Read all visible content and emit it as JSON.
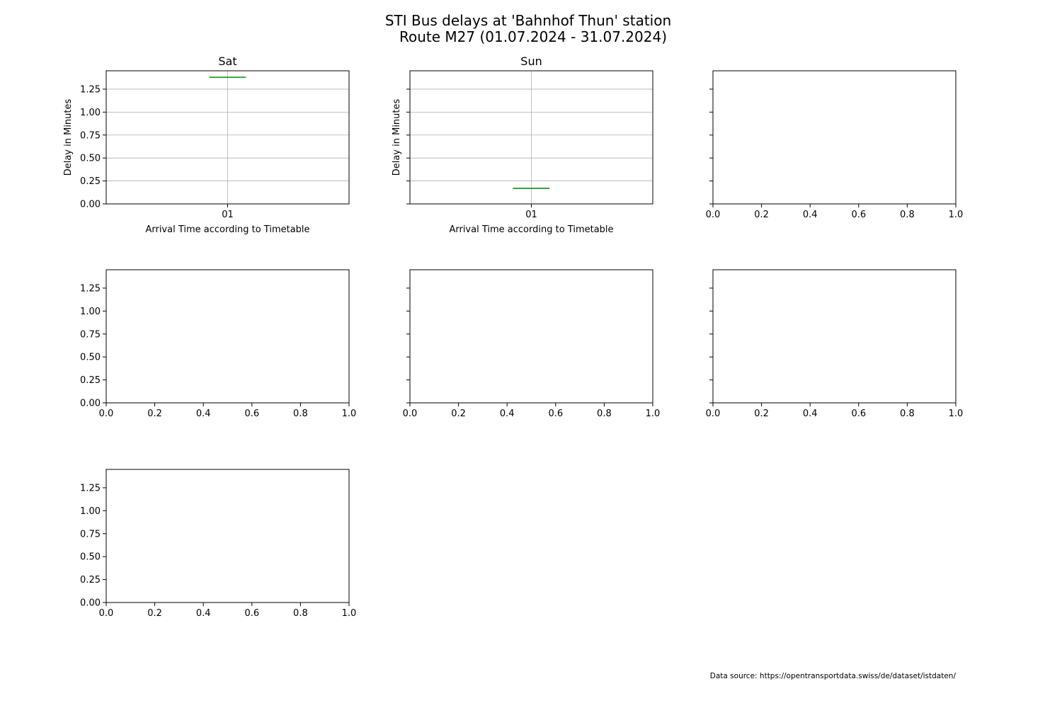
{
  "figure": {
    "title_lines": [
      "STI Bus delays at 'Bahnhof Thun' station",
      "Route M27 (01.07.2024 - 31.07.2024)"
    ],
    "footnote": "Data source: https://opentransportdata.swiss/de/dataset/istdaten/"
  },
  "chart_data": [
    {
      "type": "box",
      "title": "Sat",
      "xlabel": "Arrival Time according to Timetable",
      "ylabel": "Delay in Minutes",
      "grid": true,
      "categories": [
        "01"
      ],
      "series": [
        {
          "values": [
            [
              1.38,
              1.38,
              1.38,
              1.38,
              1.38
            ]
          ]
        }
      ],
      "ylim": [
        0,
        1.45
      ],
      "yticks": [
        "0.00",
        "0.25",
        "0.50",
        "0.75",
        "1.00",
        "1.25"
      ],
      "show_ytick_labels": true
    },
    {
      "type": "box",
      "title": "Sun",
      "xlabel": "Arrival Time according to Timetable",
      "ylabel": "Delay in Minutes",
      "grid": true,
      "categories": [
        "01"
      ],
      "series": [
        {
          "values": [
            [
              0.17,
              0.17,
              0.17,
              0.17,
              0.17
            ]
          ]
        }
      ],
      "ylim": [
        0,
        1.45
      ],
      "yticks": [
        "0.00",
        "0.25",
        "0.50",
        "0.75",
        "1.00",
        "1.25"
      ],
      "show_ytick_labels": false
    },
    {
      "type": "empty",
      "title": "",
      "xlim": [
        0,
        1
      ],
      "ylim": [
        0,
        1.45
      ],
      "xticks": [
        "0.0",
        "0.2",
        "0.4",
        "0.6",
        "0.8",
        "1.0"
      ],
      "yticks": [
        "0.00",
        "0.25",
        "0.50",
        "0.75",
        "1.00",
        "1.25"
      ],
      "show_ytick_labels": false
    },
    {
      "type": "empty",
      "title": "",
      "xlim": [
        0,
        1
      ],
      "ylim": [
        0,
        1.45
      ],
      "xticks": [
        "0.0",
        "0.2",
        "0.4",
        "0.6",
        "0.8",
        "1.0"
      ],
      "yticks": [
        "0.00",
        "0.25",
        "0.50",
        "0.75",
        "1.00",
        "1.25"
      ],
      "show_ytick_labels": true
    },
    {
      "type": "empty",
      "title": "",
      "xlim": [
        0,
        1
      ],
      "ylim": [
        0,
        1.45
      ],
      "xticks": [
        "0.0",
        "0.2",
        "0.4",
        "0.6",
        "0.8",
        "1.0"
      ],
      "yticks": [
        "0.00",
        "0.25",
        "0.50",
        "0.75",
        "1.00",
        "1.25"
      ],
      "show_ytick_labels": false
    },
    {
      "type": "empty",
      "title": "",
      "xlim": [
        0,
        1
      ],
      "ylim": [
        0,
        1.45
      ],
      "xticks": [
        "0.0",
        "0.2",
        "0.4",
        "0.6",
        "0.8",
        "1.0"
      ],
      "yticks": [
        "0.00",
        "0.25",
        "0.50",
        "0.75",
        "1.00",
        "1.25"
      ],
      "show_ytick_labels": false
    },
    {
      "type": "empty",
      "title": "",
      "xlim": [
        0,
        1
      ],
      "ylim": [
        0,
        1.45
      ],
      "xticks": [
        "0.0",
        "0.2",
        "0.4",
        "0.6",
        "0.8",
        "1.0"
      ],
      "yticks": [
        "0.00",
        "0.25",
        "0.50",
        "0.75",
        "1.00",
        "1.25"
      ],
      "show_ytick_labels": true
    }
  ],
  "colors": {
    "axis": "#000000",
    "grid": "#b0b0b0",
    "median": "#2ca02c",
    "box": "#1f77b4",
    "text": "#000000"
  }
}
